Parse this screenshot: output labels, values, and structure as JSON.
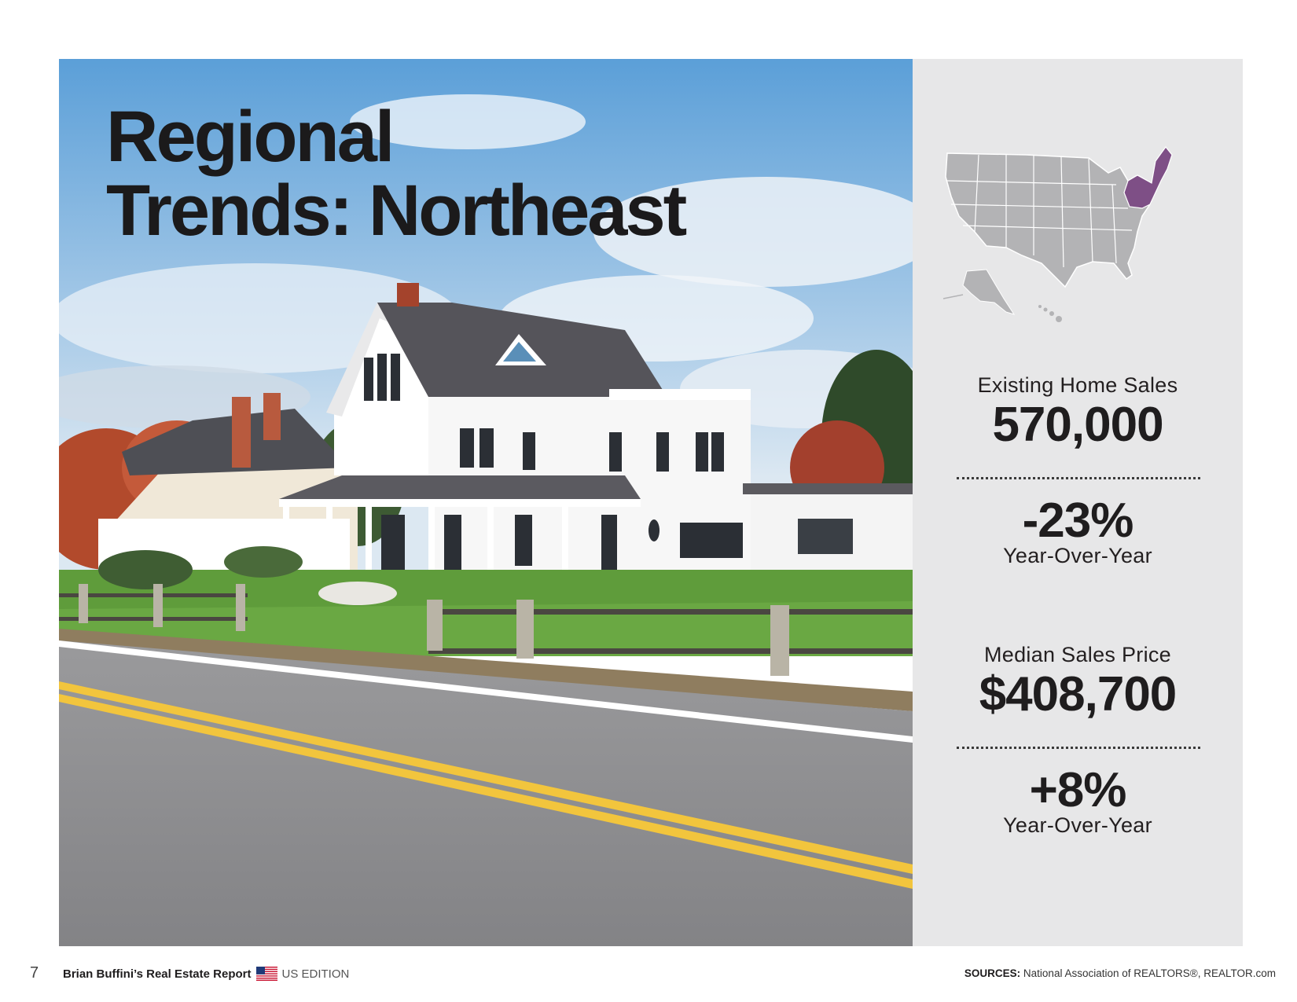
{
  "title": {
    "line1": "Regional",
    "line2": "Trends: Northeast"
  },
  "map": {
    "icon": "us-map-icon",
    "highlight_region": "Northeast",
    "base_color": "#b3b3b5",
    "highlight_color": "#7e4f86"
  },
  "stats": {
    "sales": {
      "label": "Existing Home Sales",
      "value": "570,000",
      "change": "-23%",
      "change_label": "Year-Over-Year"
    },
    "price": {
      "label": "Median Sales Price",
      "value": "$408,700",
      "change": "+8%",
      "change_label": "Year-Over-Year"
    }
  },
  "footer": {
    "page_number": "7",
    "report_name": "Brian Buffini’s Real Estate Report",
    "flag_icon": "us-flag-icon",
    "edition": "US EDITION",
    "sources_label": "SOURCES:",
    "sources_text": "National Association of REALTORS®, REALTOR.com"
  },
  "colors": {
    "panel_bg": "#e7e7e8",
    "text": "#1f1d1e"
  }
}
